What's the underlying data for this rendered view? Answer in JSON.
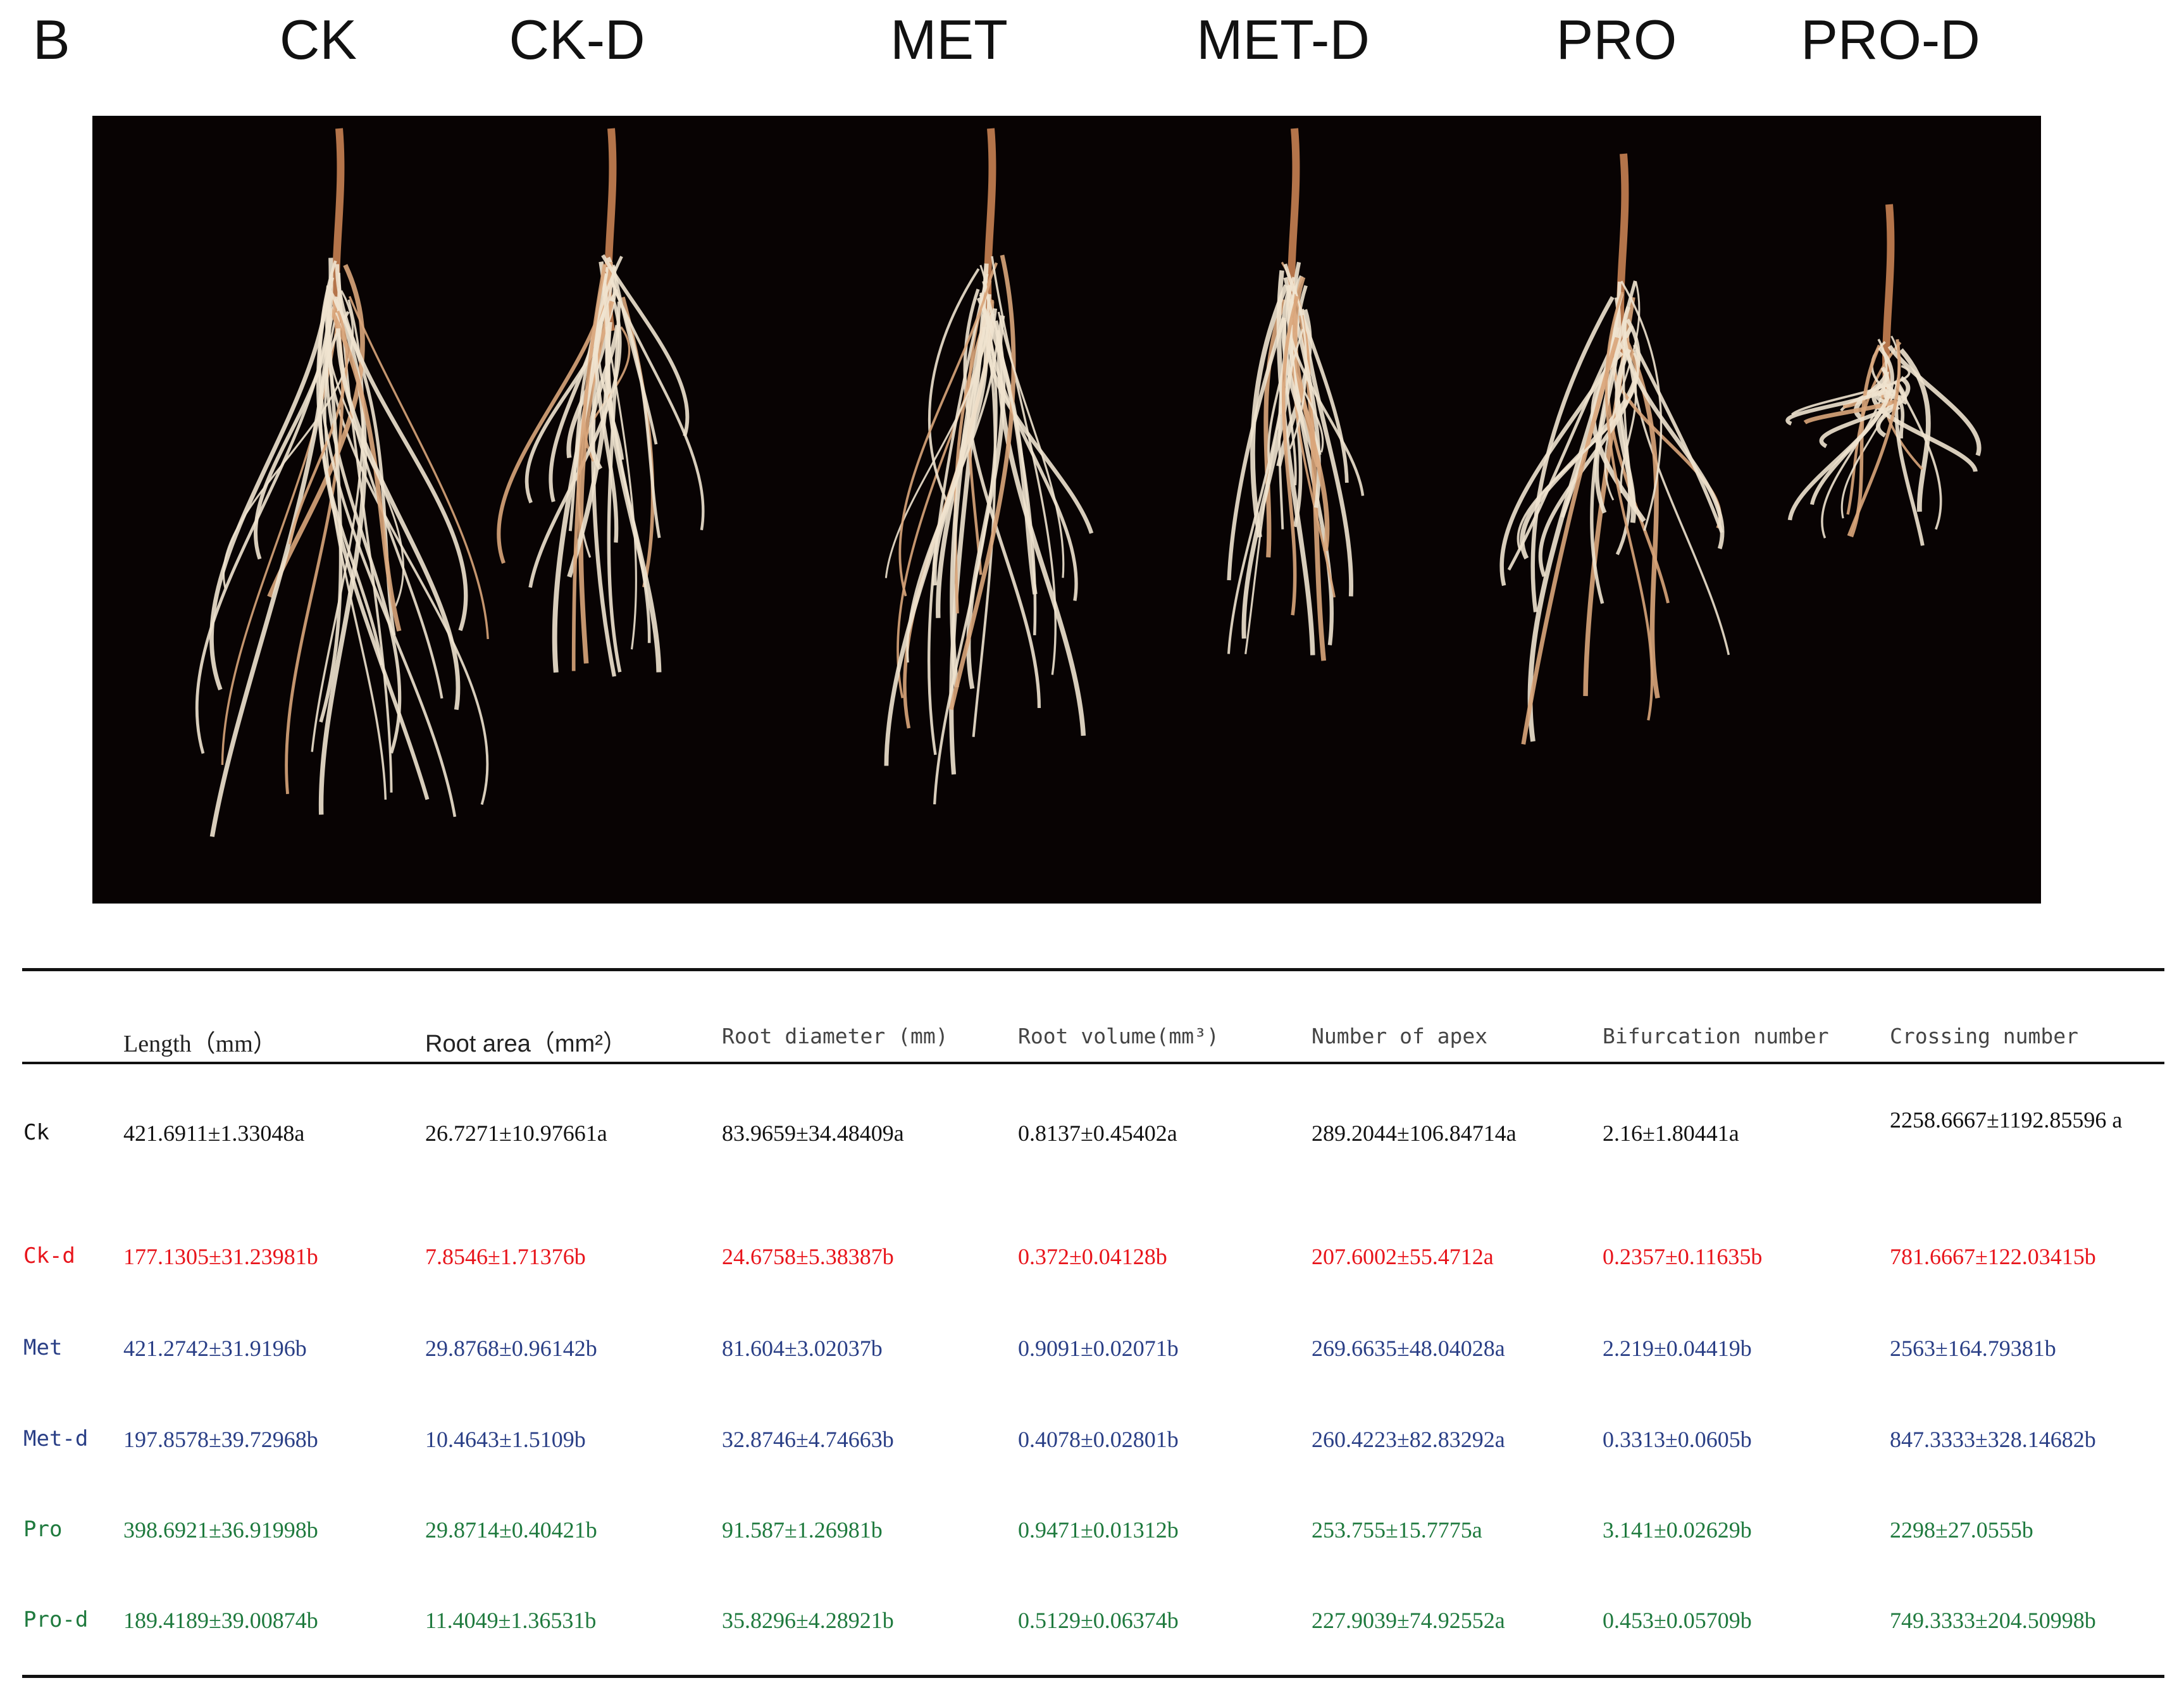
{
  "figure": {
    "panel_label": "B",
    "treatments": [
      "CK",
      "CK-D",
      "MET",
      "MET-D",
      "PRO",
      "PRO-D"
    ]
  },
  "table": {
    "columns": [
      "",
      "Length（mm）",
      "Root area（mm²）",
      "Root diameter (mm)",
      "Root volume(mm³)",
      "Number of apex",
      "Bifurcation number",
      "Crossing number"
    ],
    "rows": [
      {
        "label": "Ck",
        "color": "#111111",
        "values": [
          "421.6911±1.33048a",
          "26.7271±10.97661a",
          "83.9659±34.48409a",
          "0.8137±0.45402a",
          "289.2044±106.84714a",
          "2.16±1.80441a",
          "2258.6667±1192.85596 a"
        ]
      },
      {
        "label": "Ck-d",
        "color": "#e8141b",
        "values": [
          "177.1305±31.23981b",
          "7.8546±1.71376b",
          "24.6758±5.38387b",
          "0.372±0.04128b",
          "207.6002±55.4712a",
          "0.2357±0.11635b",
          "781.6667±122.03415b"
        ]
      },
      {
        "label": "Met",
        "color": "#2a3f86",
        "values": [
          "421.2742±31.9196b",
          "29.8768±0.96142b",
          "81.604±3.02037b",
          "0.9091±0.02071b",
          "269.6635±48.04028a",
          "2.219±0.04419b",
          "2563±164.79381b"
        ]
      },
      {
        "label": "Met-d",
        "color": "#2a3f86",
        "values": [
          "197.8578±39.72968b",
          "10.4643±1.5109b",
          "32.8746±4.74663b",
          "0.4078±0.02801b",
          "260.4223±82.83292a",
          "0.3313±0.0605b",
          "847.3333±328.14682b"
        ]
      },
      {
        "label": "Pro",
        "color": "#1f7a3e",
        "values": [
          "398.6921±36.91998b",
          "29.8714±0.40421b",
          "91.587±1.26981b",
          "0.9471±0.01312b",
          "253.755±15.7775a",
          "3.141±0.02629b",
          "2298±27.0555b"
        ]
      },
      {
        "label": "Pro-d",
        "color": "#1f7a3e",
        "values": [
          "189.4189±39.00874b",
          "11.4049±1.36531b",
          "35.8296±4.28921b",
          "0.5129±0.06374b",
          "227.9039±74.92552a",
          "0.453±0.05709b",
          "749.3333±204.50998b"
        ]
      }
    ]
  }
}
